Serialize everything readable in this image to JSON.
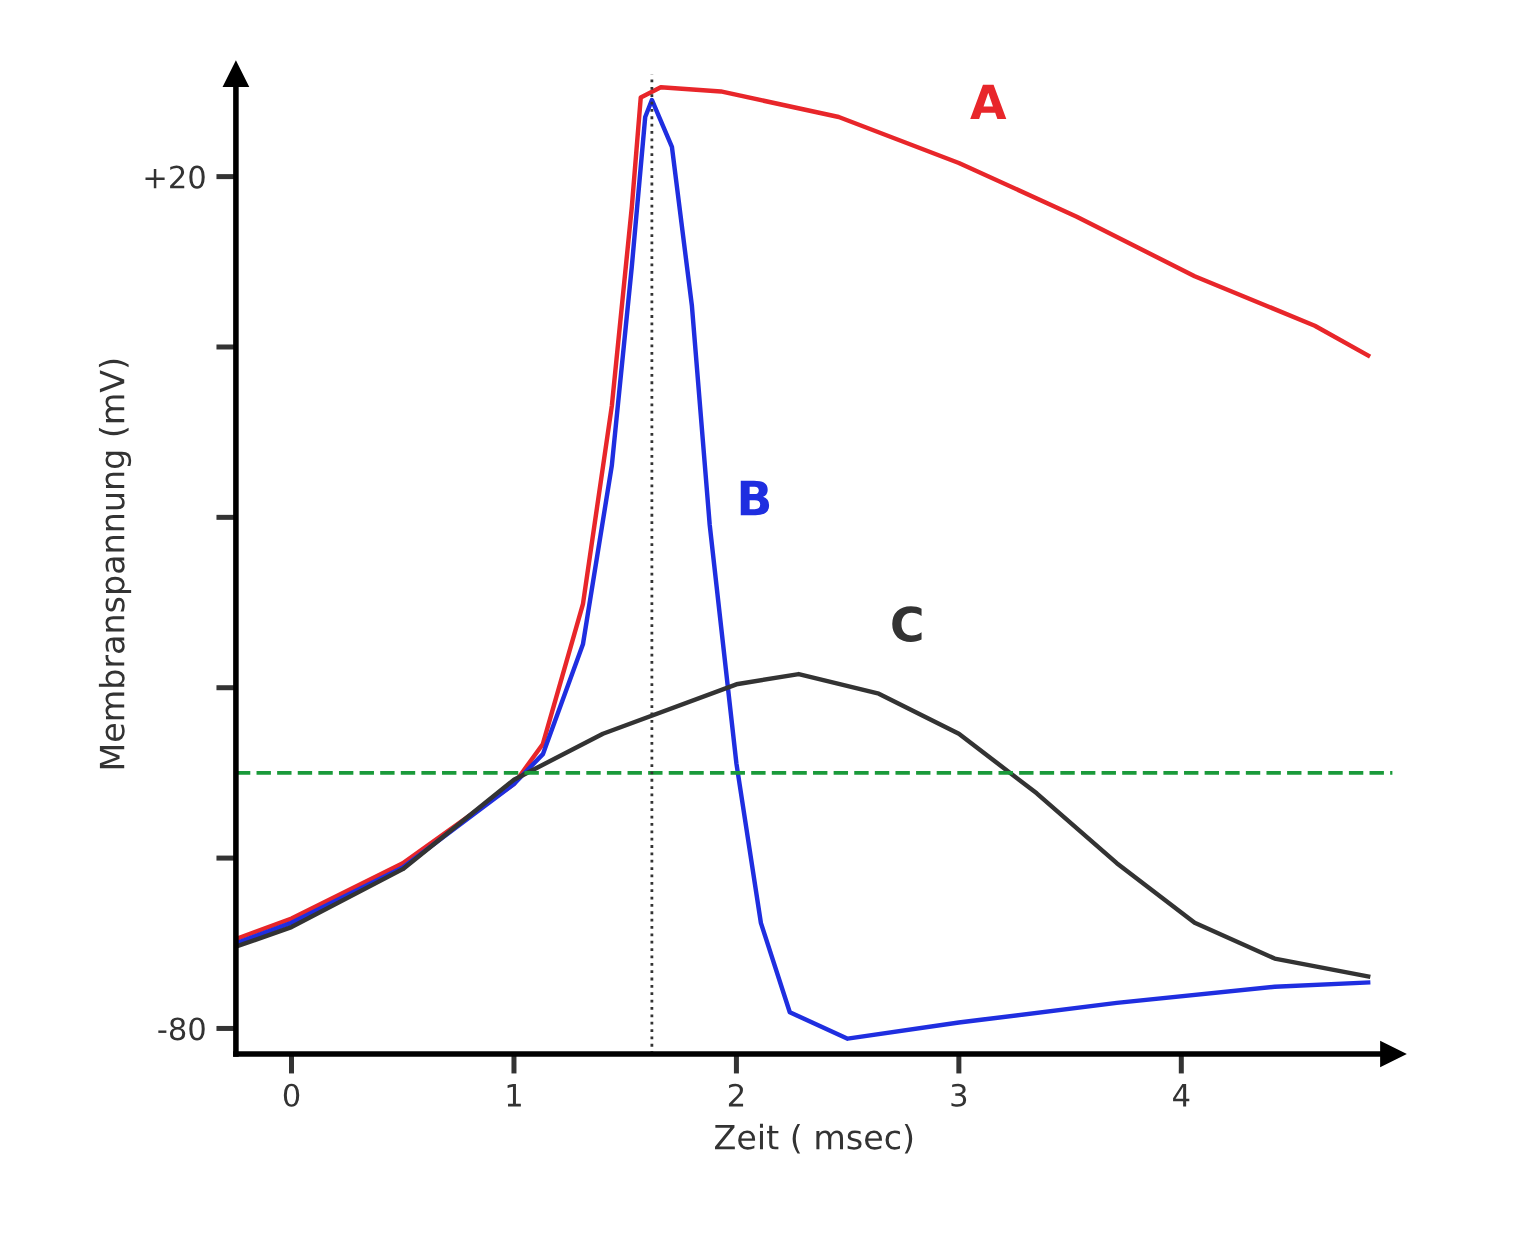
{
  "chart_data": {
    "type": "line",
    "xlabel": "Zeit ( msec)",
    "ylabel": "Membranspannung (mV)",
    "xlim": [
      -0.25,
      4.95
    ],
    "ylim": [
      -83,
      32
    ],
    "xticks": [
      0,
      1,
      2,
      3,
      4
    ],
    "yticks": [
      {
        "value": 20,
        "label": "+20"
      },
      {
        "value": 0,
        "label": null
      },
      {
        "value": -20,
        "label": null
      },
      {
        "value": -40,
        "label": null
      },
      {
        "value": -60,
        "label": null
      },
      -80
    ],
    "grid": false,
    "legend": false,
    "marker": "none",
    "line_style": "solid",
    "series": [
      {
        "name": "A",
        "color": "#e8262a",
        "x": [
          -0.25,
          0,
          0.5,
          1.0,
          1.13,
          1.31,
          1.44,
          1.53,
          1.57,
          1.66,
          1.93,
          2.46,
          3.0,
          3.53,
          4.06,
          4.6,
          4.84
        ],
        "values": [
          -69.5,
          -67.1,
          -60.6,
          -51.3,
          -46.6,
          -30.2,
          -6.9,
          16.5,
          29.3,
          30.5,
          30,
          27,
          21.6,
          15.3,
          8.3,
          2.5,
          -1
        ]
      },
      {
        "name": "B",
        "color": "#1f2ee0",
        "x": [
          -0.25,
          0,
          0.5,
          1.0,
          1.13,
          1.31,
          1.44,
          1.53,
          1.59,
          1.62,
          1.71,
          1.8,
          1.88,
          2.0,
          2.11,
          2.24,
          2.5,
          3.0,
          3.71,
          4.42,
          4.84
        ],
        "values": [
          -70,
          -67.6,
          -61.1,
          -51.3,
          -47.8,
          -34.9,
          -13.9,
          9.5,
          27,
          29,
          23.5,
          4.8,
          -20.9,
          -48.9,
          -67.6,
          -78.1,
          -81.2,
          -79.3,
          -77,
          -75.1,
          -74.6
        ]
      },
      {
        "name": "C",
        "color": "#333333",
        "x": [
          -0.25,
          0,
          0.5,
          1.0,
          1.4,
          2.0,
          2.28,
          2.64,
          3.0,
          3.35,
          3.71,
          4.06,
          4.42,
          4.84
        ],
        "values": [
          -70.4,
          -68.1,
          -61.3,
          -50.8,
          -45.4,
          -39.6,
          -38.4,
          -40.7,
          -45.4,
          -52.4,
          -60.6,
          -67.6,
          -71.8,
          -73.9
        ]
      }
    ],
    "ref_lines": [
      {
        "axis": "y",
        "value": -50,
        "color": "#1a9a3a",
        "line_style": "dashed"
      },
      {
        "axis": "x",
        "value": 1.62,
        "color": "#333333",
        "line_style": "dotted"
      }
    ]
  }
}
